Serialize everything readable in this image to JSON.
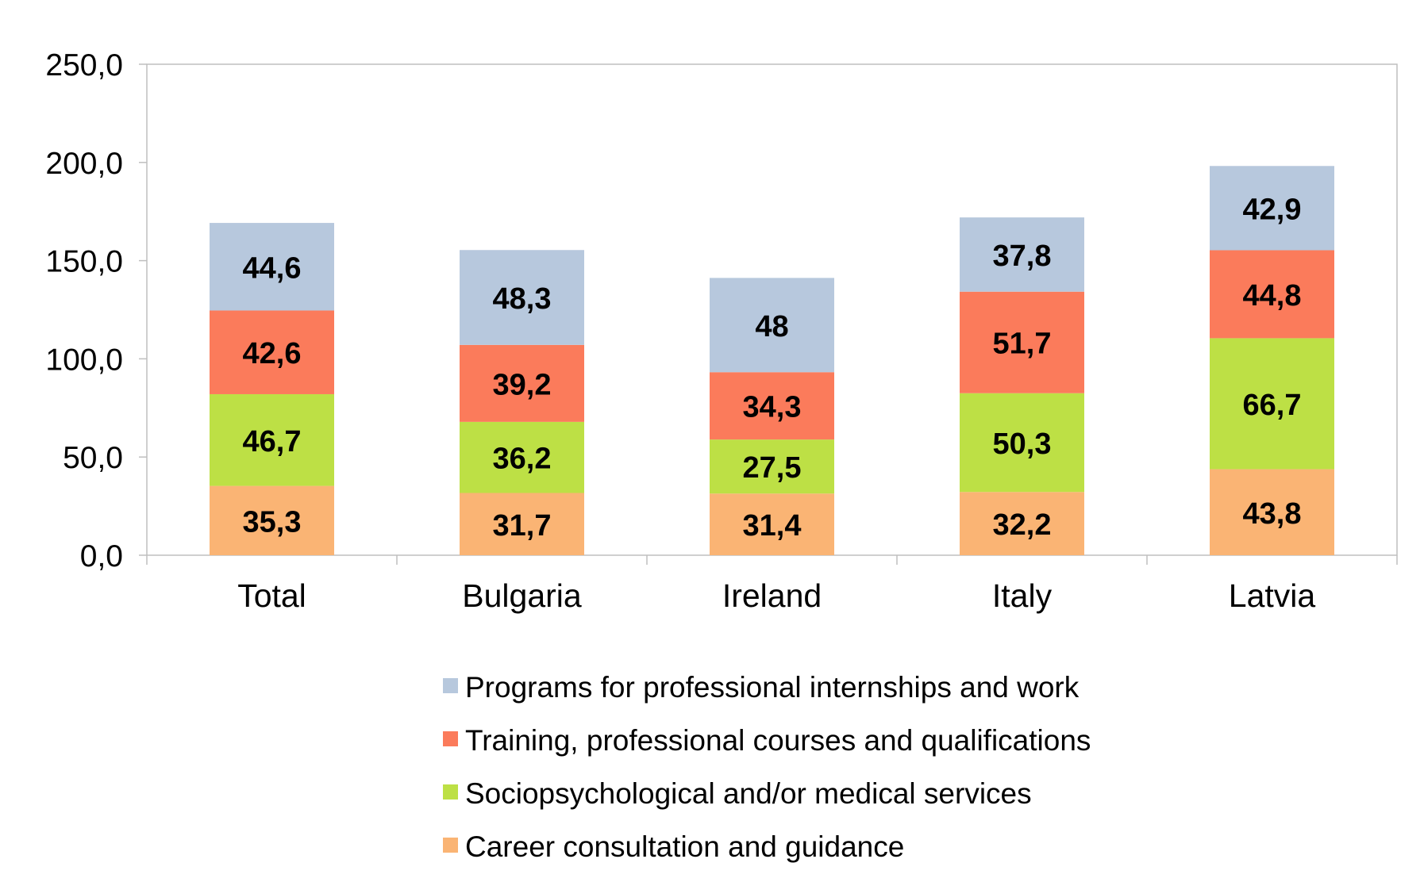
{
  "chart_data": {
    "type": "bar",
    "stacked": true,
    "title": "",
    "xlabel": "",
    "ylabel": "",
    "ylim": [
      0,
      250
    ],
    "yticks": [
      "0,0",
      "50,0",
      "100,0",
      "150,0",
      "200,0",
      "250,0"
    ],
    "ytick_values": [
      0,
      50,
      100,
      150,
      200,
      250
    ],
    "categories": [
      "Total",
      "Bulgaria",
      "Ireland",
      "Italy",
      "Latvia"
    ],
    "series": [
      {
        "name": "Career consultation and guidance",
        "color": "#fab474",
        "values": [
          35.3,
          31.7,
          31.4,
          32.2,
          43.8
        ],
        "labels": [
          "35,3",
          "31,7",
          "31,4",
          "32,2",
          "43,8"
        ]
      },
      {
        "name": "Sociopsychological  and/or medical services",
        "color": "#bde045",
        "values": [
          46.7,
          36.2,
          27.5,
          50.3,
          66.7
        ],
        "labels": [
          "46,7",
          "36,2",
          "27,5",
          "50,3",
          "66,7"
        ]
      },
      {
        "name": "Training, professional courses and qualifications",
        "color": "#fb7b5b",
        "values": [
          42.6,
          39.2,
          34.3,
          51.7,
          44.8
        ],
        "labels": [
          "42,6",
          "39,2",
          "34,3",
          "51,7",
          "44,8"
        ]
      },
      {
        "name": "Programs for professional internships and work",
        "color": "#b7c8dd",
        "values": [
          44.6,
          48.3,
          48,
          37.8,
          42.9
        ],
        "labels": [
          "44,6",
          "48,3",
          "48",
          "37,8",
          "42,9"
        ]
      }
    ],
    "legend_order": [
      3,
      2,
      1,
      0
    ],
    "legend_position": "bottom",
    "grid": false,
    "axis_color": "#bfbfbf"
  }
}
